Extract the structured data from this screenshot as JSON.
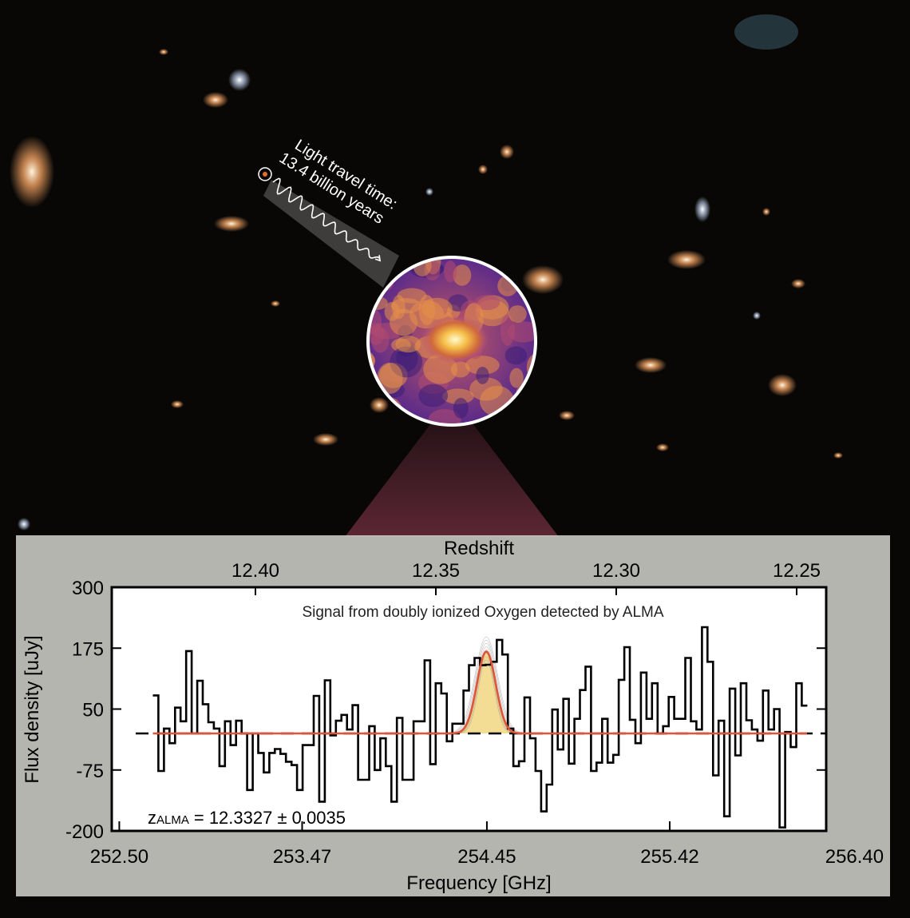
{
  "annotation": {
    "line1": "Light travel time:",
    "line2": "13.4 billion years"
  },
  "colors": {
    "background": "#080706",
    "panel": "#b9b9b5",
    "fit": "#e0553a",
    "fill": "#f3dc94",
    "step": "#000000"
  },
  "chart_data": {
    "type": "line",
    "title": "Signal from doubly ionized Oxygen detected by ALMA",
    "xlabel": "Frequency [GHz]",
    "ylabel": "Flux density [uJy]",
    "top_axis_label": "Redshift",
    "xlim": [
      252.46,
      256.25
    ],
    "ylim": [
      -200,
      300
    ],
    "x_ticks": [
      "252.50",
      "253.47",
      "254.45",
      "255.42",
      "256.40"
    ],
    "x_tick_values": [
      252.5,
      253.47,
      254.45,
      255.42,
      256.4
    ],
    "y_ticks": [
      "300",
      "175",
      "50",
      "-75",
      "-200"
    ],
    "y_tick_values": [
      300,
      175,
      50,
      -75,
      -200
    ],
    "top_ticks": [
      "12.40",
      "12.35",
      "12.30",
      "12.25"
    ],
    "top_tick_values": [
      12.4,
      12.35,
      12.3,
      12.25
    ],
    "annotation": "z",
    "annotation_sub": "ALMA",
    "annotation_value": "= 12.3327 ± 0.0035",
    "spectrum": {
      "freq_start": 252.678,
      "freq_end": 256.15,
      "values": [
        78,
        -77,
        10,
        -20,
        53,
        25,
        169,
        0,
        108,
        60,
        23,
        10,
        -67,
        25,
        -24,
        26,
        0,
        -116,
        0,
        -40,
        -80,
        -40,
        -32,
        -42,
        -58,
        -65,
        -116,
        -24,
        -24,
        77,
        -140,
        109,
        -4,
        26,
        38,
        8,
        58,
        -95,
        -95,
        15,
        -75,
        -10,
        -67,
        -140,
        32,
        -95,
        -95,
        25,
        25,
        150,
        -63,
        103,
        82,
        -16,
        20,
        20,
        88,
        140,
        155,
        140,
        141,
        147,
        192,
        162,
        10,
        -67,
        -57,
        74,
        -10,
        -77,
        -160,
        -105,
        49,
        -33,
        71,
        -62,
        30,
        89,
        137,
        -77,
        -60,
        30,
        -60,
        -44,
        110,
        177,
        28,
        -20,
        125,
        30,
        103,
        0,
        15,
        75,
        30,
        30,
        155,
        25,
        8,
        218,
        147,
        -86,
        26,
        -170,
        92,
        -45,
        103,
        27,
        8,
        -15,
        88,
        8,
        50,
        -193,
        3,
        -28,
        103,
        57
      ]
    },
    "fit": {
      "center_ghz": 254.447,
      "peak_ujy": 168,
      "sigma_ghz": 0.05
    }
  }
}
